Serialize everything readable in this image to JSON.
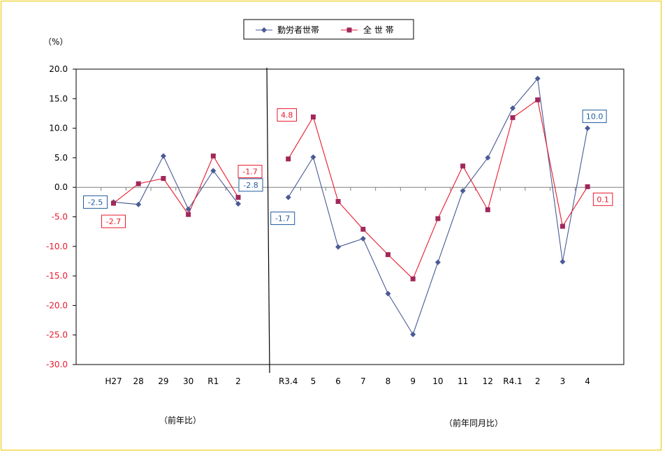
{
  "chart_data": {
    "type": "line",
    "unit_label": "（%）",
    "ylim": [
      -30,
      20
    ],
    "y_ticks": [
      "20.0",
      "15.0",
      "10.0",
      "5.0",
      "0.0",
      "-5.0",
      "-10.0",
      "-15.0",
      "-20.0",
      "-25.0",
      "-30.0"
    ],
    "categories": [
      "H27",
      "28",
      "29",
      "30",
      "R1",
      "2",
      "R3.4",
      "5",
      "6",
      "7",
      "8",
      "9",
      "10",
      "11",
      "12",
      "R4.1",
      "2",
      "3",
      "4"
    ],
    "group_labels": {
      "annual": "（前年比）",
      "monthly": "（前年同月比）"
    },
    "legend": {
      "position": "top-center"
    },
    "series": [
      {
        "name": "勤労者世帯",
        "color": "#4a5a94",
        "marker": "diamond",
        "annual": [
          -2.5,
          -2.9,
          5.3,
          -3.7,
          2.8,
          -2.8
        ],
        "monthly": [
          -1.7,
          5.1,
          -10.1,
          -8.7,
          -18.0,
          -24.9,
          -12.7,
          -0.6,
          5.0,
          13.4,
          18.4,
          -12.6,
          10.0
        ]
      },
      {
        "name": "全 世 帯",
        "color": "#e8192c",
        "marker_color": "#a0285a",
        "marker": "square",
        "annual": [
          -2.7,
          0.6,
          1.5,
          -4.6,
          5.3,
          -1.7
        ],
        "monthly": [
          4.8,
          11.9,
          -2.4,
          -7.1,
          -11.4,
          -15.5,
          -5.3,
          3.6,
          -3.8,
          11.8,
          14.8,
          -6.6,
          0.1
        ]
      }
    ],
    "annotations": [
      {
        "text": "-2.5",
        "series": 0,
        "category": 0,
        "color": "#1f5c9e"
      },
      {
        "text": "-2.7",
        "series": 1,
        "category": 0,
        "color": "#e8192c"
      },
      {
        "text": "-1.7",
        "series": 1,
        "category": 5,
        "color": "#e8192c"
      },
      {
        "text": "-2.8",
        "series": 0,
        "category": 5,
        "color": "#1f5c9e"
      },
      {
        "text": "4.8",
        "series": 1,
        "category": 6,
        "color": "#e8192c"
      },
      {
        "text": "-1.7",
        "series": 0,
        "category": 6,
        "color": "#1f5c9e"
      },
      {
        "text": "10.0",
        "series": 0,
        "category": 18,
        "color": "#1f5c9e"
      },
      {
        "text": "0.1",
        "series": 1,
        "category": 18,
        "color": "#e8192c"
      }
    ],
    "grid": false
  }
}
